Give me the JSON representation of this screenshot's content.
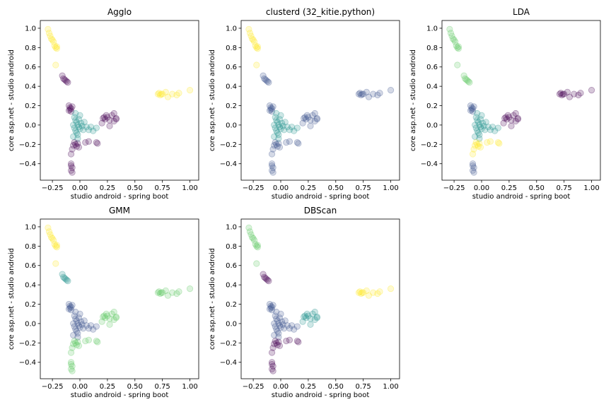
{
  "figure": {
    "background": "#ffffff"
  },
  "palette": [
    "#440154",
    "#3b528b",
    "#21918c",
    "#5ec962",
    "#fde725"
  ],
  "chart_data": [
    {
      "type": "scatter",
      "title": "Agglo",
      "xlabel": "studio android  -  spring boot",
      "ylabel": "core asp.net  -  studio android",
      "xlim": [
        -0.36,
        1.08
      ],
      "ylim": [
        -0.57,
        1.08
      ],
      "xticks": [
        -0.25,
        0.0,
        0.25,
        0.5,
        0.75,
        1.0
      ],
      "xtick_labels": [
        "−0.25",
        "0.00",
        "0.25",
        "0.50",
        "0.75",
        "1.00"
      ],
      "yticks": [
        -0.4,
        -0.2,
        0.0,
        0.2,
        0.4,
        0.6,
        0.8,
        1.0
      ],
      "ytick_labels": [
        "−0.4",
        "−0.2",
        "0.0",
        "0.2",
        "0.4",
        "0.6",
        "0.8",
        "1.0"
      ],
      "groups": {
        "upper_arm": 4,
        "mid_arm": 0,
        "core_top": 0,
        "core_center": 2,
        "core_low": 0,
        "core_bottom": 0,
        "right_cluster": 0,
        "right_tail": 4
      }
    },
    {
      "type": "scatter",
      "title": "clusterd (32_kitie.python)",
      "xlabel": "studio android  -  spring boot",
      "ylabel": "core asp.net  -  studio android",
      "xlim": [
        -0.36,
        1.08
      ],
      "ylim": [
        -0.57,
        1.08
      ],
      "xticks": [
        -0.25,
        0.0,
        0.25,
        0.5,
        0.75,
        1.0
      ],
      "xtick_labels": [
        "−0.25",
        "0.00",
        "0.25",
        "0.50",
        "0.75",
        "1.00"
      ],
      "yticks": [
        -0.4,
        -0.2,
        0.0,
        0.2,
        0.4,
        0.6,
        0.8,
        1.0
      ],
      "ytick_labels": [
        "−0.4",
        "−0.2",
        "0.0",
        "0.2",
        "0.4",
        "0.6",
        "0.8",
        "1.0"
      ],
      "groups": {
        "upper_arm": 4,
        "mid_arm": 1,
        "core_top": 1,
        "core_center": 2,
        "core_low": 1,
        "core_bottom": 1,
        "right_cluster": 1,
        "right_tail": 1
      }
    },
    {
      "type": "scatter",
      "title": "LDA",
      "xlabel": "studio android  -  spring boot",
      "ylabel": "core asp.net  -  studio android",
      "xlim": [
        -0.36,
        1.08
      ],
      "ylim": [
        -0.57,
        1.08
      ],
      "xticks": [
        -0.25,
        0.0,
        0.25,
        0.5,
        0.75,
        1.0
      ],
      "xtick_labels": [
        "−0.25",
        "0.00",
        "0.25",
        "0.50",
        "0.75",
        "1.00"
      ],
      "yticks": [
        -0.4,
        -0.2,
        0.0,
        0.2,
        0.4,
        0.6,
        0.8,
        1.0
      ],
      "ytick_labels": [
        "−0.4",
        "−0.2",
        "0.0",
        "0.2",
        "0.4",
        "0.6",
        "0.8",
        "1.0"
      ],
      "groups": {
        "upper_arm": 3,
        "mid_arm": 3,
        "core_top": 1,
        "core_center": 2,
        "core_low": 4,
        "core_bottom": 1,
        "right_cluster": 0,
        "right_tail": 0
      }
    },
    {
      "type": "scatter",
      "title": "GMM",
      "xlabel": "studio android  -  spring boot",
      "ylabel": "core asp.net  -  studio android",
      "xlim": [
        -0.36,
        1.08
      ],
      "ylim": [
        -0.57,
        1.08
      ],
      "xticks": [
        -0.25,
        0.0,
        0.25,
        0.5,
        0.75,
        1.0
      ],
      "xtick_labels": [
        "−0.25",
        "0.00",
        "0.25",
        "0.50",
        "0.75",
        "1.00"
      ],
      "yticks": [
        -0.4,
        -0.2,
        0.0,
        0.2,
        0.4,
        0.6,
        0.8,
        1.0
      ],
      "ytick_labels": [
        "−0.4",
        "−0.2",
        "0.0",
        "0.2",
        "0.4",
        "0.6",
        "0.8",
        "1.0"
      ],
      "groups": {
        "upper_arm": 4,
        "mid_arm": 2,
        "core_top": 1,
        "core_center": 1,
        "core_low": 3,
        "core_bottom": 3,
        "right_cluster": 3,
        "right_tail": 3
      }
    },
    {
      "type": "scatter",
      "title": "DBScan",
      "xlabel": "studio android  -  spring boot",
      "ylabel": "core asp.net  -  studio android",
      "xlim": [
        -0.36,
        1.08
      ],
      "ylim": [
        -0.57,
        1.08
      ],
      "xticks": [
        -0.25,
        0.0,
        0.25,
        0.5,
        0.75,
        1.0
      ],
      "xtick_labels": [
        "−0.25",
        "0.00",
        "0.25",
        "0.50",
        "0.75",
        "1.00"
      ],
      "yticks": [
        -0.4,
        -0.2,
        0.0,
        0.2,
        0.4,
        0.6,
        0.8,
        1.0
      ],
      "ytick_labels": [
        "−0.4",
        "−0.2",
        "0.0",
        "0.2",
        "0.4",
        "0.6",
        "0.8",
        "1.0"
      ],
      "groups": {
        "upper_arm": 3,
        "mid_arm": 0,
        "core_top": 1,
        "core_center": 1,
        "core_low": 0,
        "core_bottom": 0,
        "right_cluster": 2,
        "right_tail": 4
      }
    }
  ],
  "points": {
    "upper_arm": [
      [
        -0.29,
        0.99
      ],
      [
        -0.28,
        0.95
      ],
      [
        -0.27,
        0.92
      ],
      [
        -0.26,
        0.89
      ],
      [
        -0.25,
        0.88
      ],
      [
        -0.24,
        0.86
      ],
      [
        -0.23,
        0.82
      ],
      [
        -0.22,
        0.8
      ],
      [
        -0.21,
        0.79
      ],
      [
        -0.21,
        0.81
      ],
      [
        -0.22,
        0.62
      ]
    ],
    "mid_arm": [
      [
        -0.16,
        0.51
      ],
      [
        -0.15,
        0.48
      ],
      [
        -0.14,
        0.47
      ],
      [
        -0.13,
        0.46
      ],
      [
        -0.12,
        0.45
      ],
      [
        -0.11,
        0.44
      ]
    ],
    "core_top": [
      [
        -0.1,
        0.2
      ],
      [
        -0.09,
        0.18
      ],
      [
        -0.09,
        0.16
      ],
      [
        -0.08,
        0.17
      ],
      [
        -0.07,
        0.19
      ],
      [
        -0.08,
        0.14
      ],
      [
        -0.1,
        0.15
      ]
    ],
    "core_center": [
      [
        -0.05,
        0.08
      ],
      [
        -0.04,
        0.05
      ],
      [
        -0.03,
        0.03
      ],
      [
        -0.02,
        0.0
      ],
      [
        -0.01,
        -0.02
      ],
      [
        0.0,
        -0.04
      ],
      [
        -0.04,
        -0.06
      ],
      [
        -0.05,
        -0.03
      ],
      [
        -0.03,
        -0.08
      ],
      [
        -0.02,
        -0.1
      ],
      [
        -0.06,
        0.0
      ],
      [
        0.01,
        0.02
      ],
      [
        0.02,
        -0.01
      ],
      [
        0.03,
        -0.05
      ],
      [
        -0.01,
        0.06
      ],
      [
        0.0,
        0.1
      ],
      [
        -0.04,
        0.12
      ],
      [
        0.04,
        0.03
      ],
      [
        0.06,
        -0.02
      ],
      [
        0.08,
        -0.05
      ],
      [
        0.1,
        -0.02
      ],
      [
        0.12,
        -0.06
      ],
      [
        0.15,
        -0.03
      ],
      [
        -0.06,
        -0.12
      ],
      [
        -0.02,
        -0.14
      ]
    ],
    "core_low": [
      [
        -0.05,
        -0.18
      ],
      [
        -0.04,
        -0.2
      ],
      [
        -0.03,
        -0.22
      ],
      [
        -0.02,
        -0.19
      ],
      [
        -0.06,
        -0.21
      ],
      [
        -0.01,
        -0.23
      ],
      [
        -0.07,
        -0.25
      ],
      [
        -0.08,
        -0.3
      ],
      [
        0.05,
        -0.18
      ],
      [
        0.08,
        -0.17
      ],
      [
        0.15,
        -0.18
      ],
      [
        0.16,
        -0.19
      ]
    ],
    "core_bottom": [
      [
        -0.08,
        -0.4
      ],
      [
        -0.08,
        -0.42
      ],
      [
        -0.07,
        -0.44
      ],
      [
        -0.08,
        -0.47
      ],
      [
        -0.07,
        -0.49
      ]
    ],
    "right_cluster": [
      [
        0.21,
        0.07
      ],
      [
        0.23,
        0.06
      ],
      [
        0.25,
        0.08
      ],
      [
        0.27,
        0.05
      ],
      [
        0.29,
        0.1
      ],
      [
        0.31,
        0.12
      ],
      [
        0.33,
        0.07
      ],
      [
        0.31,
        0.04
      ],
      [
        0.24,
        0.1
      ],
      [
        0.2,
        0.02
      ],
      [
        0.27,
        -0.01
      ],
      [
        0.22,
        0.08
      ],
      [
        0.33,
        0.06
      ]
    ],
    "right_tail": [
      [
        0.71,
        0.32
      ],
      [
        0.72,
        0.33
      ],
      [
        0.73,
        0.31
      ],
      [
        0.74,
        0.32
      ],
      [
        0.75,
        0.32
      ],
      [
        0.78,
        0.34
      ],
      [
        0.8,
        0.29
      ],
      [
        0.84,
        0.32
      ],
      [
        0.88,
        0.31
      ],
      [
        0.9,
        0.33
      ],
      [
        1.0,
        0.36
      ]
    ]
  }
}
